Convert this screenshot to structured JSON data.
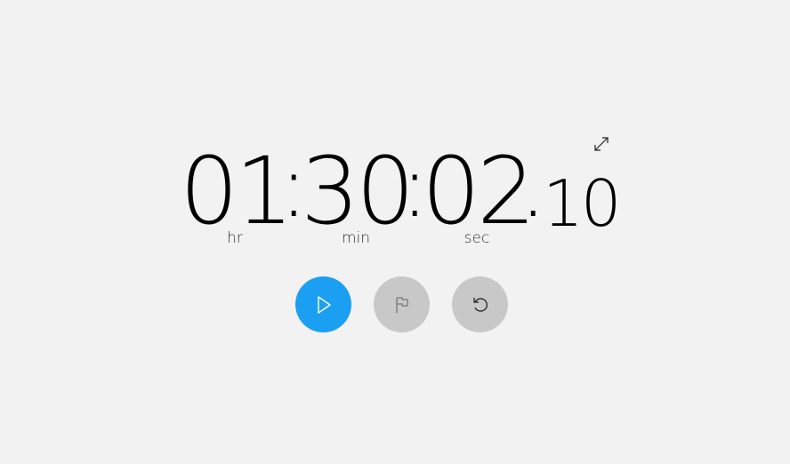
{
  "timer": {
    "hours": "01",
    "minutes": "30",
    "seconds": "02",
    "separator": ":",
    "decimal": ".",
    "fraction": "10"
  },
  "units": {
    "hours": "hr",
    "minutes": "min",
    "seconds": "sec"
  },
  "controls": {
    "play_icon": "play-icon",
    "lap_icon": "flag-icon",
    "reset_icon": "reset-icon",
    "expand_icon": "expand-icon"
  },
  "colors": {
    "background": "#f2f2f2",
    "play_button": "#1a9ff2",
    "disabled_button": "#c8c8c8"
  }
}
